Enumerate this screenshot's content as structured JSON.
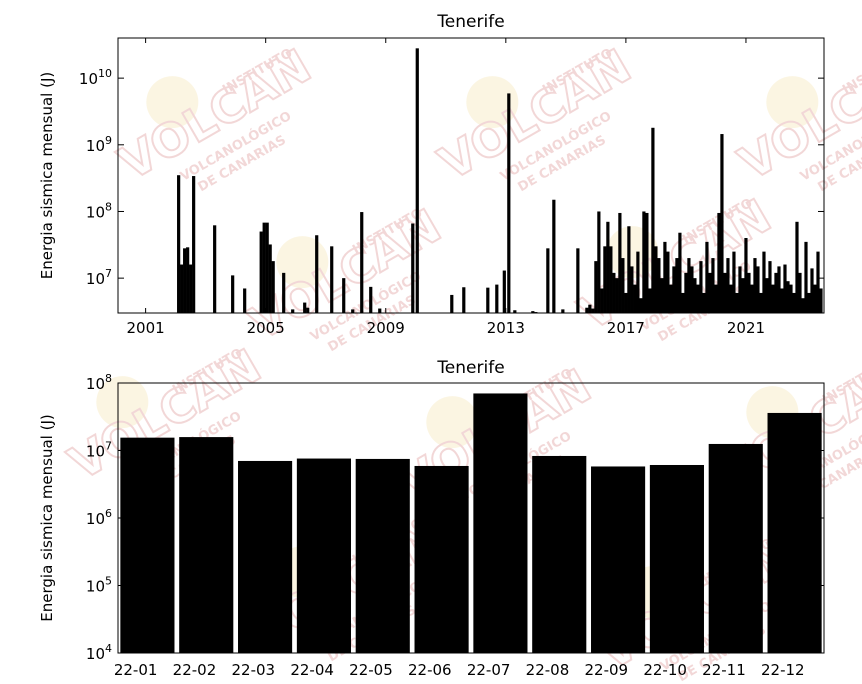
{
  "watermark": {
    "brand": "VOLCAN",
    "line1": "INSTITUTO",
    "line2": "VOLCANOLÓGICO",
    "line3": "DE CANARIAS",
    "color": "#e8b8b8",
    "accent": "#f3dfa6"
  },
  "chart_data": [
    {
      "type": "bar",
      "title": "Tenerife",
      "ylabel": "Energia sismica mensual (J)",
      "xlabel": "",
      "yscale": "log",
      "ylim": [
        3000000,
        40000000000
      ],
      "xlim": [
        2000.08,
        2023.6
      ],
      "xticks": [
        2001,
        2005,
        2009,
        2013,
        2017,
        2021
      ],
      "xtick_labels": [
        "2001",
        "2005",
        "2009",
        "2013",
        "2017",
        "2021"
      ],
      "yticks": [
        10000000,
        100000000,
        1000000000,
        10000000000
      ],
      "ytick_labels": [
        {
          "base": "10",
          "exp": "7"
        },
        {
          "base": "10",
          "exp": "8"
        },
        {
          "base": "10",
          "exp": "9"
        },
        {
          "base": "10",
          "exp": "10"
        }
      ],
      "bar_color": "#000000",
      "grid": false,
      "x": [
        2002.1,
        2002.2,
        2002.3,
        2002.4,
        2002.5,
        2002.6,
        2003.3,
        2003.9,
        2004.3,
        2004.85,
        2004.95,
        2005.05,
        2005.15,
        2005.25,
        2005.6,
        2005.9,
        2006.3,
        2006.4,
        2006.7,
        2007.2,
        2007.6,
        2007.9,
        2008.2,
        2008.5,
        2008.8,
        2009.9,
        2010.05,
        2011.2,
        2011.6,
        2012.4,
        2012.7,
        2012.95,
        2013.1,
        2013.3,
        2013.9,
        2014.0,
        2014.4,
        2014.6,
        2014.9,
        2015.4,
        2015.7,
        2015.8,
        2015.9,
        2016.0,
        2016.1,
        2016.2,
        2016.3,
        2016.4,
        2016.5,
        2016.6,
        2016.7,
        2016.8,
        2016.9,
        2017.0,
        2017.1,
        2017.2,
        2017.3,
        2017.4,
        2017.5,
        2017.6,
        2017.7,
        2017.8,
        2017.9,
        2018.0,
        2018.1,
        2018.2,
        2018.3,
        2018.4,
        2018.5,
        2018.6,
        2018.7,
        2018.8,
        2018.9,
        2019.0,
        2019.1,
        2019.2,
        2019.3,
        2019.4,
        2019.5,
        2019.6,
        2019.7,
        2019.8,
        2019.9,
        2020.0,
        2020.1,
        2020.2,
        2020.3,
        2020.4,
        2020.5,
        2020.6,
        2020.7,
        2020.8,
        2020.9,
        2021.0,
        2021.1,
        2021.2,
        2021.3,
        2021.4,
        2021.5,
        2021.6,
        2021.7,
        2021.8,
        2021.9,
        2022.0,
        2022.1,
        2022.2,
        2022.3,
        2022.4,
        2022.5,
        2022.6,
        2022.7,
        2022.8,
        2022.9,
        2023.0,
        2023.1,
        2023.2,
        2023.3,
        2023.4,
        2023.5
      ],
      "values": [
        350000000,
        16000000,
        28000000,
        29000000,
        16000000,
        340000000,
        62000000,
        11000000,
        7000000,
        50000000,
        68000000,
        68000000,
        32000000,
        18000000,
        12000000,
        3400000,
        4300000,
        3600000,
        44000000,
        30000000,
        10000000,
        3400000,
        98000000,
        7400000,
        3500000,
        66000000,
        28000000000,
        5600000,
        7300000,
        7200000,
        8000000,
        13000000,
        5900000000,
        3300000,
        3200000,
        3100000,
        28000000,
        150000000,
        3400000,
        28000000,
        3600000,
        4000000,
        3500000,
        18000000,
        100000000,
        7000000,
        30000000,
        70000000,
        30000000,
        12000000,
        10000000,
        95000000,
        20000000,
        6000000,
        60000000,
        15000000,
        8000000,
        25000000,
        5000000,
        100000000,
        95000000,
        7000000,
        1800000000,
        30000000,
        20000000,
        10000000,
        35000000,
        25000000,
        8000000,
        15000000,
        20000000,
        48000000,
        6000000,
        12000000,
        20000000,
        15000000,
        10000000,
        8000000,
        18000000,
        6000000,
        35000000,
        12000000,
        20000000,
        8000000,
        95000000,
        1450000000,
        12000000,
        20000000,
        8000000,
        25000000,
        6000000,
        15000000,
        10000000,
        40000000,
        12000000,
        8000000,
        20000000,
        15000000,
        6000000,
        25000000,
        10000000,
        18000000,
        8000000,
        12000000,
        15000000,
        7000000,
        16000000,
        9000000,
        8000000,
        6000000,
        70000000,
        12000000,
        5000000,
        35000000,
        6000000,
        14000000,
        8000000,
        25000000,
        7000000
      ]
    },
    {
      "type": "bar",
      "title": "Tenerife",
      "ylabel": "Energia sismica mensual (J)",
      "xlabel": "",
      "yscale": "log",
      "ylim": [
        10000,
        100000000
      ],
      "categories": [
        "22-01",
        "22-02",
        "22-03",
        "22-04",
        "22-05",
        "22-06",
        "22-07",
        "22-08",
        "22-09",
        "22-10",
        "22-11",
        "22-12"
      ],
      "values": [
        15500000,
        15800000,
        7000000,
        7600000,
        7500000,
        5900000,
        70000000,
        8300000,
        5800000,
        6100000,
        12500000,
        36000000
      ],
      "yticks": [
        10000,
        100000,
        1000000,
        10000000,
        100000000
      ],
      "ytick_labels": [
        {
          "base": "10",
          "exp": "4"
        },
        {
          "base": "10",
          "exp": "5"
        },
        {
          "base": "10",
          "exp": "6"
        },
        {
          "base": "10",
          "exp": "7"
        },
        {
          "base": "10",
          "exp": "8"
        }
      ],
      "bar_color": "#000000",
      "grid": false
    }
  ]
}
